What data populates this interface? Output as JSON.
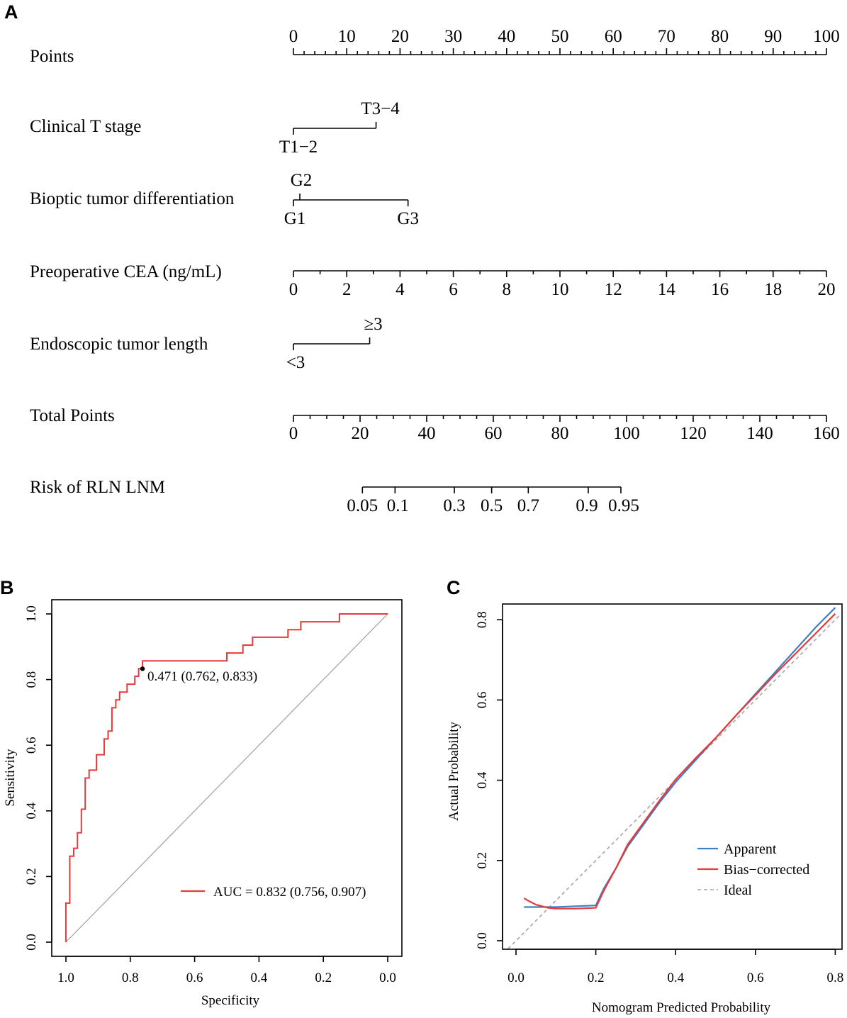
{
  "panels": {
    "a": "A",
    "b": "B",
    "c": "C"
  },
  "colors": {
    "roc": "#e8393b",
    "diagonal": "#a0a0a0",
    "apparent": "#3d7ec4",
    "bias_corrected": "#e8393b",
    "ideal": "#a5a5a5"
  },
  "chart_data": [
    {
      "type": "nomogram",
      "panel": "A",
      "rows": [
        {
          "label": "Points",
          "kind": "scale",
          "scale": [
            0,
            100
          ],
          "labels": [
            "0",
            "10",
            "20",
            "30",
            "40",
            "50",
            "60",
            "70",
            "80",
            "90",
            "100"
          ],
          "values": [
            0,
            10,
            20,
            30,
            40,
            50,
            60,
            70,
            80,
            90,
            100
          ]
        },
        {
          "label": "Clinical T stage",
          "kind": "categorical",
          "levels": [
            {
              "name": "T1−2",
              "points": 0
            },
            {
              "name": "T3−4",
              "points": 15.5
            }
          ]
        },
        {
          "label": "Bioptic tumor differentiation",
          "kind": "categorical",
          "levels": [
            {
              "name": "G1",
              "points": 0
            },
            {
              "name": "G2",
              "points": 1.2
            },
            {
              "name": "G3",
              "points": 21.5
            }
          ]
        },
        {
          "label": "Preoperative CEA (ng/mL)",
          "kind": "scale",
          "scale": [
            0,
            20
          ],
          "labels": [
            "0",
            "2",
            "4",
            "6",
            "8",
            "10",
            "12",
            "14",
            "16",
            "18",
            "20"
          ],
          "values": [
            0,
            2,
            4,
            6,
            8,
            10,
            12,
            14,
            16,
            18,
            20
          ]
        },
        {
          "label": "Endoscopic tumor length",
          "kind": "categorical",
          "levels": [
            {
              "name": "<3",
              "points": 0
            },
            {
              "name": "≥3",
              "points": 14.3
            }
          ]
        },
        {
          "label": "Total Points",
          "kind": "scale",
          "scale": [
            0,
            160
          ],
          "labels": [
            "0",
            "20",
            "40",
            "60",
            "80",
            "100",
            "120",
            "140",
            "160"
          ],
          "values": [
            0,
            20,
            40,
            60,
            80,
            100,
            120,
            140,
            160
          ]
        },
        {
          "label": "Risk of RLN LNM",
          "kind": "risk",
          "labels": [
            "0.05",
            "0.1",
            "0.3",
            "0.5",
            "0.7",
            "0.9",
            "0.95"
          ],
          "total_points": [
            20.7,
            30.5,
            48.3,
            59.5,
            70.5,
            88.5,
            98.3
          ]
        }
      ]
    },
    {
      "type": "line",
      "panel": "B",
      "xlabel": "Specificity",
      "ylabel": "Sensitivity",
      "xlim": [
        1.0,
        0.0
      ],
      "ylim": [
        0.0,
        1.0
      ],
      "xticks": [
        "1.0",
        "0.8",
        "0.6",
        "0.4",
        "0.2",
        "0.0"
      ],
      "yticks": [
        "0.0",
        "0.2",
        "0.4",
        "0.6",
        "0.8",
        "1.0"
      ],
      "series": [
        {
          "name": "ROC",
          "x": [
            1.0,
            1.0,
            0.988,
            0.988,
            0.976,
            0.976,
            0.964,
            0.964,
            0.952,
            0.952,
            0.94,
            0.94,
            0.928,
            0.928,
            0.905,
            0.905,
            0.881,
            0.881,
            0.869,
            0.869,
            0.857,
            0.857,
            0.845,
            0.845,
            0.833,
            0.833,
            0.81,
            0.81,
            0.786,
            0.786,
            0.774,
            0.774,
            0.762,
            0.762,
            0.714,
            0.714,
            0.643,
            0.643,
            0.571,
            0.571,
            0.5,
            0.5,
            0.45,
            0.45,
            0.42,
            0.42,
            0.4,
            0.4,
            0.31,
            0.31,
            0.27,
            0.27,
            0.15,
            0.15,
            0.0
          ],
          "y": [
            0.0,
            0.119,
            0.119,
            0.262,
            0.262,
            0.286,
            0.286,
            0.333,
            0.333,
            0.405,
            0.405,
            0.5,
            0.5,
            0.524,
            0.524,
            0.571,
            0.571,
            0.619,
            0.619,
            0.643,
            0.643,
            0.714,
            0.714,
            0.738,
            0.738,
            0.762,
            0.762,
            0.786,
            0.786,
            0.81,
            0.81,
            0.833,
            0.833,
            0.857,
            0.857,
            0.857,
            0.857,
            0.857,
            0.857,
            0.857,
            0.857,
            0.881,
            0.881,
            0.905,
            0.905,
            0.929,
            0.929,
            0.929,
            0.929,
            0.952,
            0.952,
            0.976,
            0.976,
            1.0,
            1.0
          ]
        },
        {
          "name": "diagonal",
          "x": [
            1.0,
            0.0
          ],
          "y": [
            0.0,
            1.0
          ]
        }
      ],
      "point": {
        "x": 0.762,
        "y": 0.833
      },
      "annotations": [
        "0.471 (0.762, 0.833)"
      ],
      "legend": [
        "AUC = 0.832 (0.756, 0.907)"
      ]
    },
    {
      "type": "line",
      "panel": "C",
      "xlabel": "Nomogram Predicted Probability",
      "ylabel": "Actual Probability",
      "xlim": [
        -0.02,
        0.81
      ],
      "ylim": [
        -0.02,
        0.83
      ],
      "xticks": [
        "0.0",
        "0.2",
        "0.4",
        "0.6",
        "0.8"
      ],
      "yticks": [
        "0.0",
        "0.2",
        "0.4",
        "0.6",
        "0.8"
      ],
      "series": [
        {
          "name": "Apparent",
          "x": [
            0.02,
            0.05,
            0.1,
            0.15,
            0.2,
            0.22,
            0.25,
            0.28,
            0.32,
            0.36,
            0.4,
            0.45,
            0.5,
            0.55,
            0.6,
            0.65,
            0.7,
            0.75,
            0.78,
            0.8
          ],
          "y": [
            0.084,
            0.084,
            0.084,
            0.086,
            0.088,
            0.13,
            0.18,
            0.235,
            0.29,
            0.345,
            0.395,
            0.45,
            0.505,
            0.56,
            0.615,
            0.67,
            0.725,
            0.78,
            0.81,
            0.83
          ]
        },
        {
          "name": "Bias−corrected",
          "x": [
            0.02,
            0.03,
            0.05,
            0.08,
            0.1,
            0.15,
            0.2,
            0.22,
            0.25,
            0.28,
            0.32,
            0.36,
            0.4,
            0.45,
            0.5,
            0.55,
            0.6,
            0.65,
            0.7,
            0.75,
            0.8
          ],
          "y": [
            0.106,
            0.1,
            0.09,
            0.082,
            0.08,
            0.08,
            0.082,
            0.125,
            0.18,
            0.24,
            0.295,
            0.35,
            0.402,
            0.455,
            0.505,
            0.56,
            0.612,
            0.665,
            0.715,
            0.765,
            0.815
          ]
        },
        {
          "name": "Ideal",
          "x": [
            -0.02,
            0.81
          ],
          "y": [
            -0.02,
            0.81
          ]
        }
      ],
      "legend": [
        "Apparent",
        "Bias−corrected",
        "Ideal"
      ]
    }
  ]
}
